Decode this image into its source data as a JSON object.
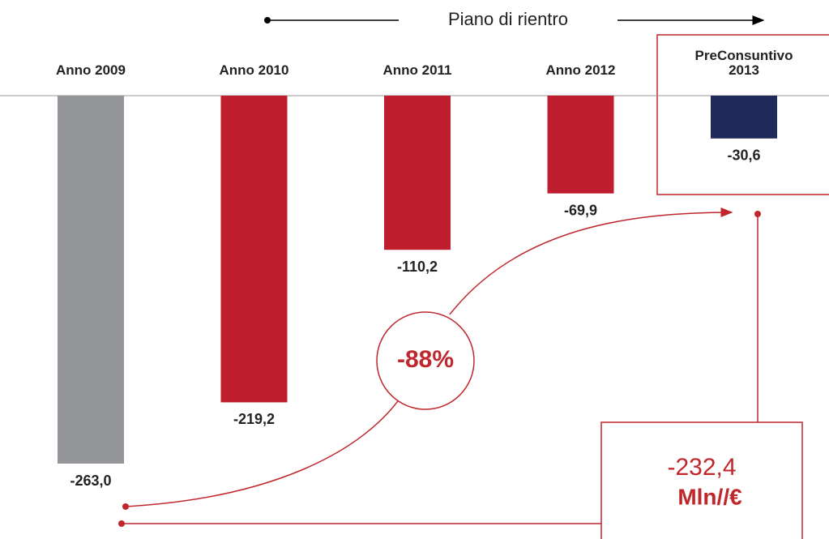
{
  "chart_data": {
    "type": "bar",
    "title": "Piano di rientro",
    "categories": [
      "Anno 2009",
      "Anno 2010",
      "Anno 2011",
      "Anno 2012",
      "PreConsuntivo 2013"
    ],
    "values": [
      -263.0,
      -219.2,
      -110.2,
      -69.9,
      -30.6
    ],
    "value_labels": [
      "-263,0",
      "-219,2",
      "-110,2",
      "-69,9",
      "-30,6"
    ],
    "colors": [
      "#939598",
      "#be1e2d",
      "#be1e2d",
      "#be1e2d",
      "#1f2a5a"
    ],
    "annotations": {
      "change": "-88%",
      "total": "-232,4",
      "unit": "Mln//€"
    }
  }
}
